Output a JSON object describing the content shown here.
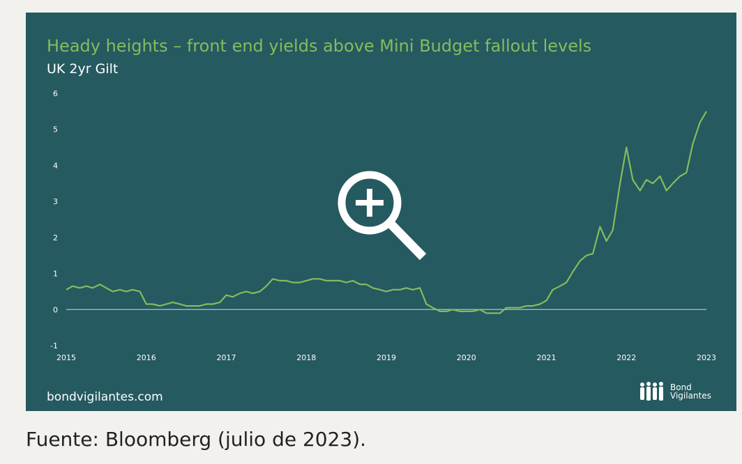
{
  "title": "Heady heights – front end yields above Mini Budget fallout levels",
  "subtitle": "UK 2yr Gilt",
  "footer_site": "bondvigilantes.com",
  "brand": {
    "line1": "Bond",
    "line2": "Vigilantes"
  },
  "source": "Fuente: Bloomberg (julio de 2023).",
  "colors": {
    "background": "#255a60",
    "line": "#86bb5e",
    "title": "#86bb5e",
    "text": "#ffffff",
    "zero_line": "#a9c9c7"
  },
  "zoom_icon": "magnifier-plus-icon",
  "chart_data": {
    "type": "line",
    "title": "Heady heights – front end yields above Mini Budget fallout levels",
    "subtitle": "UK 2yr Gilt",
    "xlabel": "",
    "ylabel": "",
    "ylim": [
      -1,
      6
    ],
    "xlim": [
      2015,
      2023
    ],
    "grid": false,
    "yticks": [
      "-1",
      "0",
      "1",
      "2",
      "3",
      "4",
      "5",
      "6"
    ],
    "xticks": [
      "2015",
      "2016",
      "2017",
      "2018",
      "2019",
      "2020",
      "2021",
      "2022",
      "2023"
    ],
    "series": [
      {
        "x": [
          2015.0,
          2015.08,
          2015.17,
          2015.25,
          2015.33,
          2015.42,
          2015.5,
          2015.58,
          2015.67,
          2015.75,
          2015.83,
          2015.92,
          2016.0,
          2016.08,
          2016.17,
          2016.25,
          2016.33,
          2016.42,
          2016.5,
          2016.58,
          2016.67,
          2016.75,
          2016.83,
          2016.92,
          2017.0,
          2017.08,
          2017.17,
          2017.25,
          2017.33,
          2017.42,
          2017.5,
          2017.58,
          2017.67,
          2017.75,
          2017.83,
          2017.92,
          2018.0,
          2018.08,
          2018.17,
          2018.25,
          2018.33,
          2018.42,
          2018.5,
          2018.58,
          2018.67,
          2018.75,
          2018.83,
          2018.92,
          2019.0,
          2019.08,
          2019.17,
          2019.25,
          2019.33,
          2019.42,
          2019.5,
          2019.58,
          2019.67,
          2019.75,
          2019.83,
          2019.92,
          2020.0,
          2020.08,
          2020.17,
          2020.25,
          2020.33,
          2020.42,
          2020.5,
          2020.58,
          2020.67,
          2020.75,
          2020.83,
          2020.92,
          2021.0,
          2021.08,
          2021.17,
          2021.25,
          2021.33,
          2021.42,
          2021.5,
          2021.58,
          2021.67,
          2021.75,
          2021.83,
          2021.92,
          2022.0,
          2022.08,
          2022.17,
          2022.25,
          2022.33,
          2022.42,
          2022.5,
          2022.58,
          2022.67,
          2022.75,
          2022.83,
          2022.92,
          2023.0
        ],
        "values": [
          0.55,
          0.65,
          0.6,
          0.65,
          0.6,
          0.7,
          0.6,
          0.5,
          0.55,
          0.5,
          0.55,
          0.5,
          0.15,
          0.15,
          0.1,
          0.15,
          0.2,
          0.15,
          0.1,
          0.1,
          0.1,
          0.15,
          0.15,
          0.2,
          0.4,
          0.35,
          0.45,
          0.5,
          0.45,
          0.5,
          0.65,
          0.85,
          0.8,
          0.8,
          0.75,
          0.75,
          0.8,
          0.85,
          0.85,
          0.8,
          0.8,
          0.8,
          0.75,
          0.8,
          0.7,
          0.7,
          0.6,
          0.55,
          0.5,
          0.55,
          0.55,
          0.6,
          0.55,
          0.6,
          0.15,
          0.05,
          -0.05,
          -0.05,
          0.0,
          -0.05,
          -0.05,
          -0.05,
          0.0,
          -0.1,
          -0.1,
          -0.1,
          0.05,
          0.05,
          0.05,
          0.1,
          0.1,
          0.15,
          0.25,
          0.55,
          0.65,
          0.75,
          1.05,
          1.35,
          1.5,
          1.55,
          2.3,
          1.9,
          2.2,
          3.5,
          4.5,
          3.6,
          3.3,
          3.6,
          3.5,
          3.7,
          3.3,
          3.5,
          3.7,
          3.8,
          4.6,
          5.2,
          5.5
        ]
      }
    ]
  }
}
